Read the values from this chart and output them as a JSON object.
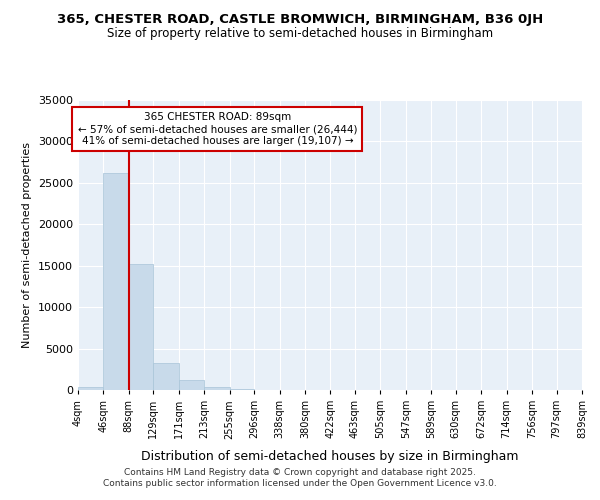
{
  "title1": "365, CHESTER ROAD, CASTLE BROMWICH, BIRMINGHAM, B36 0JH",
  "title2": "Size of property relative to semi-detached houses in Birmingham",
  "xlabel": "Distribution of semi-detached houses by size in Birmingham",
  "ylabel": "Number of semi-detached properties",
  "bin_edges": [
    4,
    46,
    88,
    129,
    171,
    213,
    255,
    296,
    338,
    380,
    422,
    463,
    505,
    547,
    589,
    630,
    672,
    714,
    756,
    797,
    839
  ],
  "bar_heights": [
    400,
    26200,
    15200,
    3200,
    1200,
    400,
    100,
    20,
    5,
    3,
    2,
    1,
    0,
    0,
    0,
    0,
    0,
    0,
    0,
    0
  ],
  "bar_color": "#c8daea",
  "bar_edgecolor": "#a8c4d8",
  "property_line_x": 88,
  "pct_smaller": 57,
  "n_smaller": 26444,
  "pct_larger": 41,
  "n_larger": 19107,
  "annotation_line1": "365 CHESTER ROAD: 89sqm",
  "annotation_line2": "← 57% of semi-detached houses are smaller (26,444)",
  "annotation_line3": "41% of semi-detached houses are larger (19,107) →",
  "line_color": "#cc0000",
  "annotation_box_facecolor": "#ffffff",
  "annotation_box_edgecolor": "#cc0000",
  "ylim": [
    0,
    35000
  ],
  "yticks": [
    0,
    5000,
    10000,
    15000,
    20000,
    25000,
    30000,
    35000
  ],
  "tick_labels": [
    "4sqm",
    "46sqm",
    "88sqm",
    "129sqm",
    "171sqm",
    "213sqm",
    "255sqm",
    "296sqm",
    "338sqm",
    "380sqm",
    "422sqm",
    "463sqm",
    "505sqm",
    "547sqm",
    "589sqm",
    "630sqm",
    "672sqm",
    "714sqm",
    "756sqm",
    "797sqm",
    "839sqm"
  ],
  "background_color": "#e8f0f8",
  "footer1": "Contains HM Land Registry data © Crown copyright and database right 2025.",
  "footer2": "Contains public sector information licensed under the Open Government Licence v3.0."
}
